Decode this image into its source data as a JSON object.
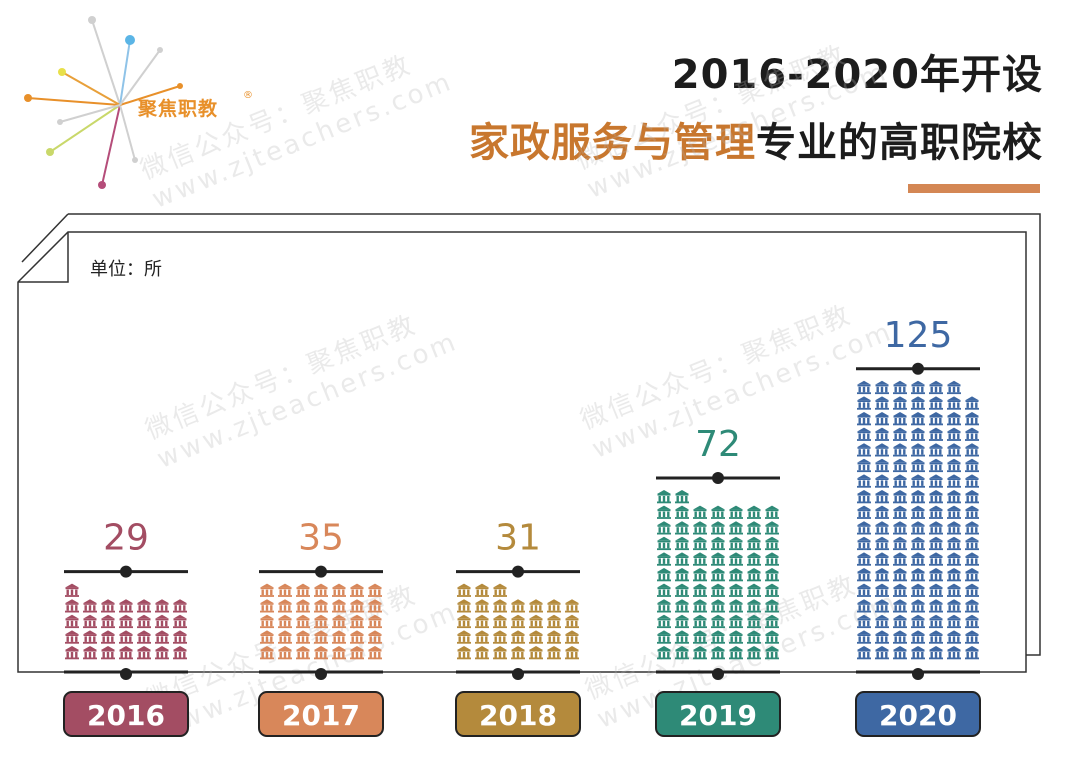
{
  "brand": {
    "name": "聚焦职教",
    "reg": "®"
  },
  "title": {
    "line1": "2016-2020年开设",
    "highlight": "家政服务与管理",
    "rest": "专业的高职院校"
  },
  "unit_label": "单位：所",
  "watermark": {
    "line1": "微信公众号：聚焦职教",
    "line2": "www.zjteachers.com"
  },
  "colors": {
    "accent": "#d48754",
    "title_highlight": "#c8772e"
  },
  "chart_data": {
    "type": "bar",
    "title": "2016-2020年开设家政服务与管理专业的高职院校",
    "ylabel": "单位：所",
    "categories": [
      "2016",
      "2017",
      "2018",
      "2019",
      "2020"
    ],
    "values": [
      29,
      35,
      31,
      72,
      125
    ],
    "colors": [
      "#a34d63",
      "#d8875a",
      "#b48a3c",
      "#2e8a77",
      "#3e68a3"
    ],
    "icon": "school-building-icon",
    "icons_per_row": 7,
    "ylim": [
      0,
      125
    ]
  }
}
